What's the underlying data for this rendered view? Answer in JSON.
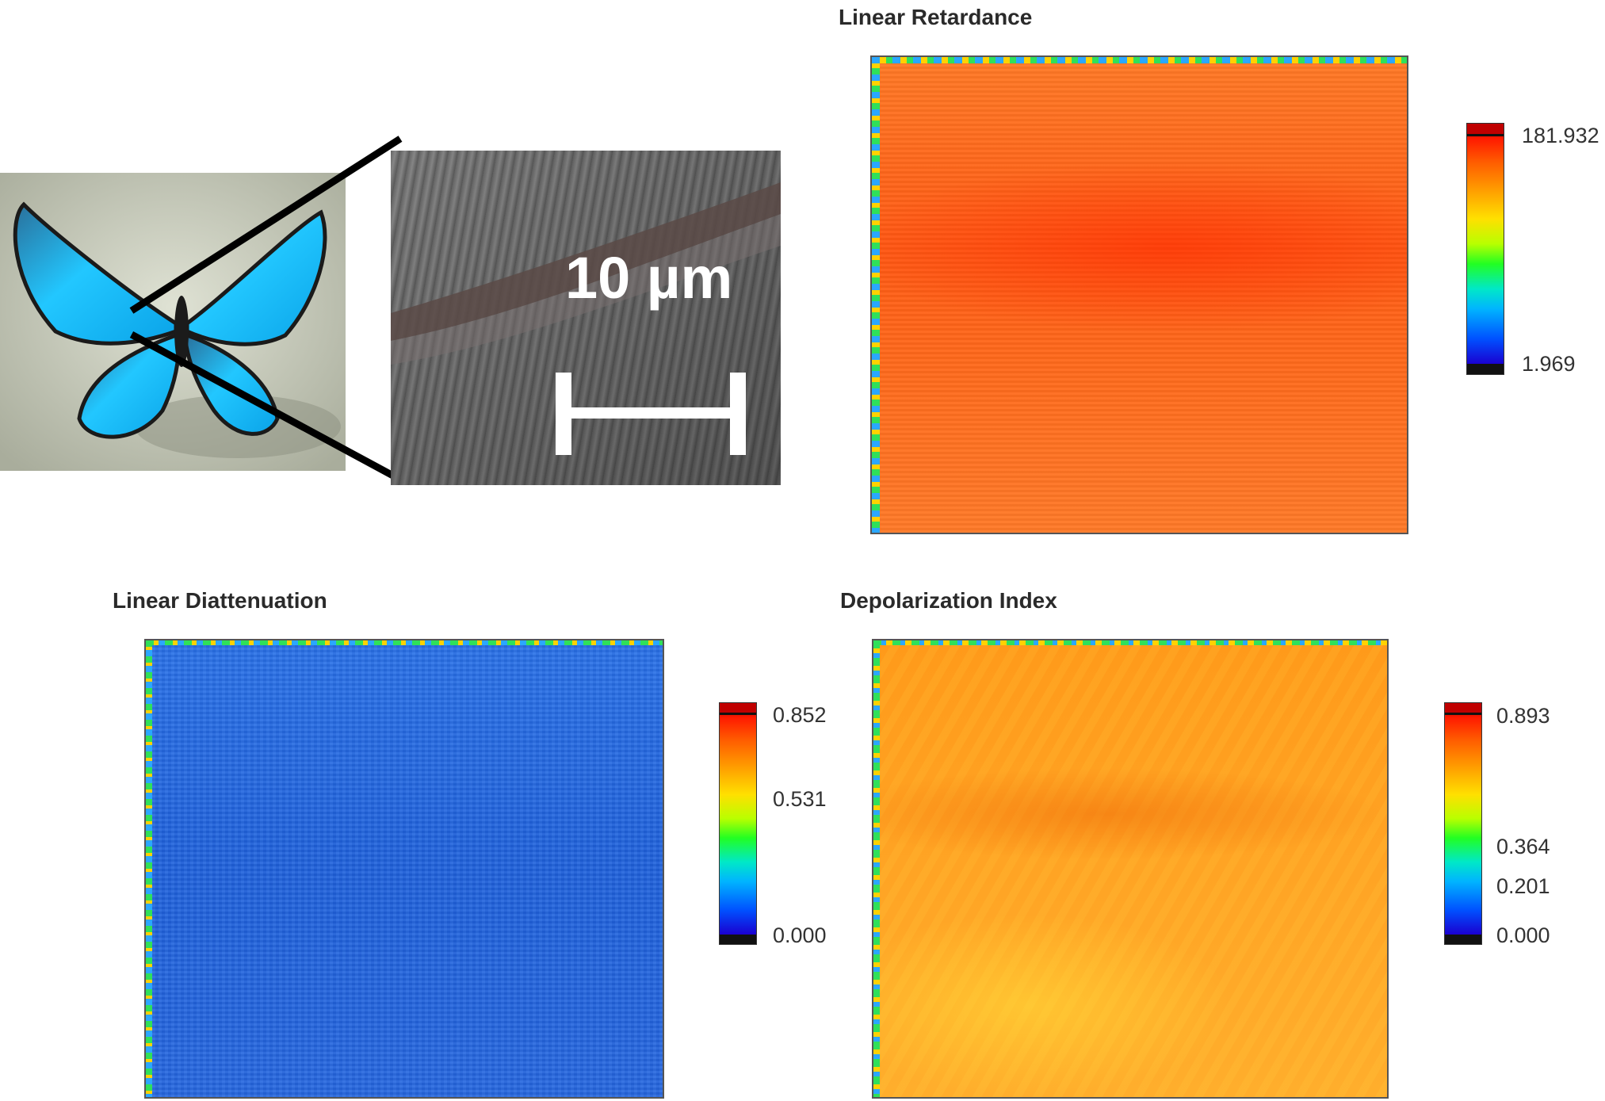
{
  "inset": {
    "scale_bar_label": "10 µm"
  },
  "panels": {
    "retardance": {
      "title": "Linear Retardance",
      "colorbar_ticks": [
        "181.932",
        "1.969"
      ],
      "dominant_color": "#ff6a1a"
    },
    "diattenuation": {
      "title": "Linear Diattenuation",
      "colorbar_ticks": [
        "0.852",
        "0.531",
        "0.000"
      ],
      "dominant_color": "#1f66e0"
    },
    "depolarization": {
      "title": "Depolarization Index",
      "colorbar_ticks": [
        "0.893",
        "0.364",
        "0.201",
        "0.000"
      ],
      "dominant_color": "#ff9f1a"
    }
  },
  "icons": [
    "butterfly-photo",
    "microscope-image",
    "zoom-lines",
    "scale-bar"
  ]
}
